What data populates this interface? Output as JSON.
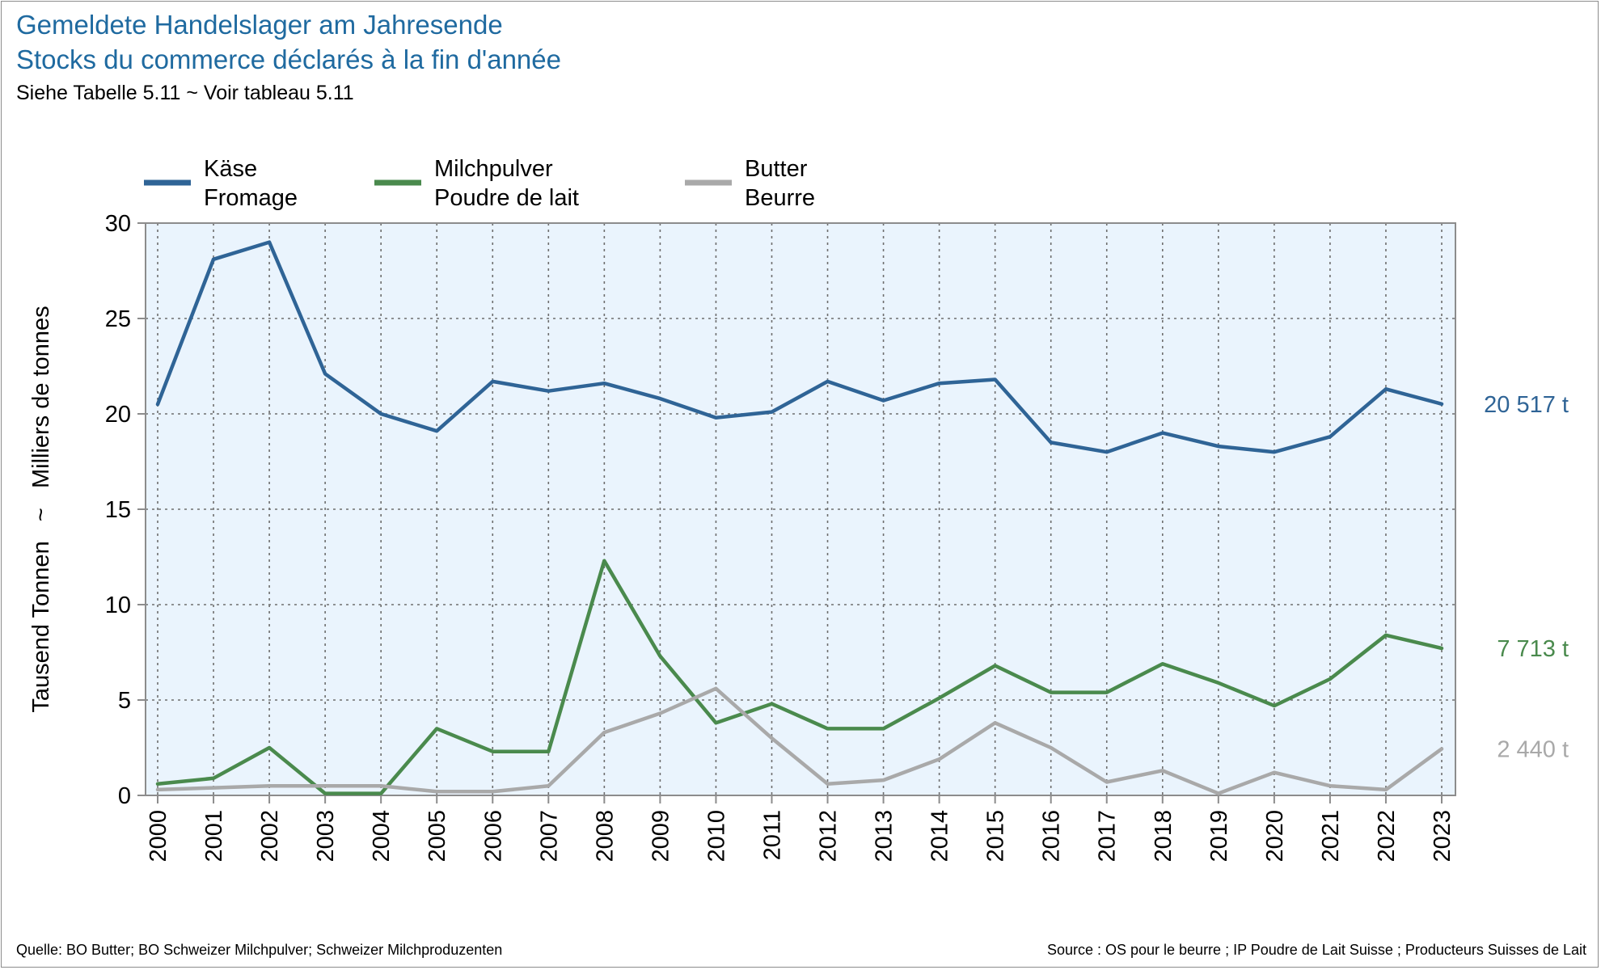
{
  "header": {
    "title_de": "Gemeldete Handelslager am Jahresende",
    "title_fr": "Stocks du commerce déclarés à la fin d'année",
    "subtitle": "Siehe Tabelle 5.11  ~  Voir tableau 5.11"
  },
  "footer": {
    "source_de": "Quelle: BO Butter; BO Schweizer Milchpulver; Schweizer Milchproduzenten",
    "source_fr": "Source : OS pour le beurre ; IP Poudre de Lait Suisse ; Producteurs Suisses de Lait"
  },
  "colors": {
    "title": "#1f6aa0",
    "plot_background": "#eaf4fd",
    "grid": "#6e6e6e",
    "axis": "#8c8c8c"
  },
  "chart_data": {
    "type": "line",
    "ylabel": "Tausend Tonnen   ~   Milliers de tonnes",
    "ylim": [
      0,
      30
    ],
    "yticks": [
      0,
      5,
      10,
      15,
      20,
      25,
      30
    ],
    "grid": true,
    "legend_position": "top",
    "x": [
      "2000",
      "2001",
      "2002",
      "2003",
      "2004",
      "2005",
      "2006",
      "2007",
      "2008",
      "2009",
      "2010",
      "2011",
      "2012",
      "2013",
      "2014",
      "2015",
      "2016",
      "2017",
      "2018",
      "2019",
      "2020",
      "2021",
      "2022",
      "2023"
    ],
    "series": [
      {
        "name": "Käse",
        "name_fr": "Fromage",
        "color": "#2f6496",
        "end_label": "20 517 t",
        "values": [
          20.5,
          28.1,
          29.0,
          22.1,
          20.0,
          19.1,
          21.7,
          21.2,
          21.6,
          20.8,
          19.8,
          20.1,
          21.7,
          20.7,
          21.6,
          21.8,
          18.5,
          18.0,
          19.0,
          18.3,
          18.0,
          18.8,
          21.3,
          20.517
        ]
      },
      {
        "name": "Milchpulver",
        "name_fr": "Poudre de lait",
        "color": "#4a8a4d",
        "end_label": "7 713 t",
        "values": [
          0.6,
          0.9,
          2.5,
          0.1,
          0.1,
          3.5,
          2.3,
          2.3,
          12.3,
          7.3,
          3.8,
          4.8,
          3.5,
          3.5,
          5.1,
          6.8,
          5.4,
          5.4,
          6.9,
          5.9,
          4.7,
          6.1,
          8.4,
          7.713
        ]
      },
      {
        "name": "Butter",
        "name_fr": "Beurre",
        "color": "#a9a9a9",
        "end_label": "2 440 t",
        "values": [
          0.3,
          0.4,
          0.5,
          0.5,
          0.5,
          0.2,
          0.2,
          0.5,
          3.3,
          4.3,
          5.6,
          3.0,
          0.6,
          0.8,
          1.9,
          3.8,
          2.5,
          0.7,
          1.3,
          0.1,
          1.2,
          0.5,
          0.3,
          2.44
        ]
      }
    ]
  }
}
